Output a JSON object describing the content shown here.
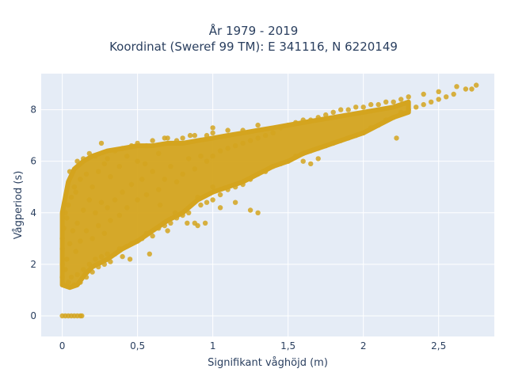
{
  "chart_data": {
    "type": "scatter",
    "title": "År 1979 - 2019",
    "subtitle": "Koordinat (Sweref 99 TM): E 341116, N 6220149",
    "xlabel": "Signifikant våghöjd (m)",
    "ylabel": "Vågperiod (s)",
    "xlim": [
      -0.14,
      2.87
    ],
    "ylim": [
      -0.8,
      9.4
    ],
    "xticks": [
      0,
      0.5,
      1,
      1.5,
      2,
      2.5
    ],
    "xtick_labels": [
      "0",
      "0,5",
      "1",
      "1,5",
      "2",
      "2,5"
    ],
    "yticks": [
      0,
      2,
      4,
      6,
      8
    ],
    "ytick_labels": [
      "0",
      "2",
      "4",
      "6",
      "8"
    ],
    "grid": true,
    "marker_color": "#D4A41E",
    "points": [
      [
        0.0,
        0
      ],
      [
        0.02,
        0
      ],
      [
        0.04,
        0
      ],
      [
        0.06,
        0
      ],
      [
        0.08,
        0
      ],
      [
        0.1,
        0
      ],
      [
        0.12,
        0
      ],
      [
        0.13,
        0
      ],
      [
        0.0,
        1.5
      ],
      [
        0.0,
        2.0
      ],
      [
        0.0,
        2.6
      ],
      [
        0.0,
        3.0
      ],
      [
        0.01,
        1.2
      ],
      [
        0.01,
        3.4
      ],
      [
        0.02,
        1.8
      ],
      [
        0.02,
        4.0
      ],
      [
        0.03,
        2.2
      ],
      [
        0.03,
        3.8
      ],
      [
        0.04,
        1.3
      ],
      [
        0.04,
        4.3
      ],
      [
        0.05,
        2.8
      ],
      [
        0.05,
        5.6
      ],
      [
        0.06,
        1.5
      ],
      [
        0.06,
        4.6
      ],
      [
        0.07,
        3.3
      ],
      [
        0.08,
        1.2
      ],
      [
        0.08,
        5.0
      ],
      [
        0.09,
        2.5
      ],
      [
        0.09,
        4.8
      ],
      [
        0.1,
        1.6
      ],
      [
        0.1,
        6.0
      ],
      [
        0.1,
        3.6
      ],
      [
        0.12,
        1.3
      ],
      [
        0.12,
        5.3
      ],
      [
        0.12,
        2.9
      ],
      [
        0.14,
        1.8
      ],
      [
        0.14,
        4.1
      ],
      [
        0.14,
        6.1
      ],
      [
        0.16,
        1.5
      ],
      [
        0.16,
        3.3
      ],
      [
        0.16,
        5.5
      ],
      [
        0.18,
        2.0
      ],
      [
        0.18,
        4.5
      ],
      [
        0.18,
        6.3
      ],
      [
        0.2,
        1.7
      ],
      [
        0.2,
        3.0
      ],
      [
        0.2,
        5.0
      ],
      [
        0.22,
        2.2
      ],
      [
        0.22,
        4.0
      ],
      [
        0.22,
        6.2
      ],
      [
        0.24,
        1.9
      ],
      [
        0.24,
        3.5
      ],
      [
        0.24,
        5.6
      ],
      [
        0.26,
        2.3
      ],
      [
        0.26,
        4.4
      ],
      [
        0.26,
        6.7
      ],
      [
        0.28,
        2.0
      ],
      [
        0.28,
        3.2
      ],
      [
        0.28,
        5.9
      ],
      [
        0.3,
        2.4
      ],
      [
        0.3,
        4.2
      ],
      [
        0.3,
        6.1
      ],
      [
        0.32,
        2.1
      ],
      [
        0.32,
        3.7
      ],
      [
        0.32,
        5.4
      ],
      [
        0.35,
        2.4
      ],
      [
        0.35,
        4.5
      ],
      [
        0.35,
        6.4
      ],
      [
        0.38,
        2.6
      ],
      [
        0.38,
        3.9
      ],
      [
        0.38,
        5.8
      ],
      [
        0.4,
        2.3
      ],
      [
        0.4,
        4.8
      ],
      [
        0.4,
        6.5
      ],
      [
        0.43,
        2.7
      ],
      [
        0.43,
        4.2
      ],
      [
        0.43,
        6.2
      ],
      [
        0.46,
        2.8
      ],
      [
        0.46,
        5.1
      ],
      [
        0.46,
        6.6
      ],
      [
        0.5,
        2.9
      ],
      [
        0.5,
        4.5
      ],
      [
        0.5,
        6.0
      ],
      [
        0.5,
        6.7
      ],
      [
        0.53,
        3.0
      ],
      [
        0.53,
        5.3
      ],
      [
        0.56,
        3.2
      ],
      [
        0.56,
        4.7
      ],
      [
        0.56,
        6.6
      ],
      [
        0.6,
        3.1
      ],
      [
        0.6,
        5.6
      ],
      [
        0.6,
        6.8
      ],
      [
        0.64,
        3.4
      ],
      [
        0.64,
        4.9
      ],
      [
        0.64,
        6.3
      ],
      [
        0.68,
        3.5
      ],
      [
        0.68,
        5.3
      ],
      [
        0.68,
        6.9
      ],
      [
        0.72,
        3.6
      ],
      [
        0.72,
        5.8
      ],
      [
        0.76,
        3.8
      ],
      [
        0.76,
        5.2
      ],
      [
        0.76,
        6.8
      ],
      [
        0.8,
        3.9
      ],
      [
        0.8,
        5.5
      ],
      [
        0.8,
        6.9
      ],
      [
        0.84,
        4.0
      ],
      [
        0.84,
        6.1
      ],
      [
        0.88,
        3.6
      ],
      [
        0.88,
        5.7
      ],
      [
        0.88,
        7.0
      ],
      [
        0.92,
        4.3
      ],
      [
        0.92,
        6.2
      ],
      [
        0.96,
        4.4
      ],
      [
        0.96,
        6.0
      ],
      [
        0.96,
        7.0
      ],
      [
        1.0,
        4.5
      ],
      [
        1.0,
        6.2
      ],
      [
        1.0,
        7.1
      ],
      [
        1.05,
        4.7
      ],
      [
        1.05,
        6.4
      ],
      [
        1.1,
        4.9
      ],
      [
        1.1,
        6.5
      ],
      [
        1.1,
        7.2
      ],
      [
        1.15,
        5.0
      ],
      [
        1.15,
        6.6
      ],
      [
        1.2,
        5.1
      ],
      [
        1.2,
        6.7
      ],
      [
        1.2,
        7.2
      ],
      [
        1.25,
        5.3
      ],
      [
        1.25,
        6.8
      ],
      [
        1.3,
        5.5
      ],
      [
        1.3,
        6.9
      ],
      [
        1.3,
        7.4
      ],
      [
        1.35,
        5.6
      ],
      [
        1.35,
        7.0
      ],
      [
        1.4,
        5.8
      ],
      [
        1.4,
        7.1
      ],
      [
        1.45,
        5.9
      ],
      [
        1.45,
        7.3
      ],
      [
        1.5,
        6.0
      ],
      [
        1.5,
        7.4
      ],
      [
        1.55,
        6.2
      ],
      [
        1.55,
        7.5
      ],
      [
        1.6,
        6.3
      ],
      [
        1.6,
        7.6
      ],
      [
        1.65,
        6.4
      ],
      [
        1.65,
        7.6
      ],
      [
        1.7,
        6.5
      ],
      [
        1.7,
        7.7
      ],
      [
        1.75,
        6.6
      ],
      [
        1.75,
        7.8
      ],
      [
        1.8,
        6.7
      ],
      [
        1.8,
        7.9
      ],
      [
        1.85,
        6.8
      ],
      [
        1.85,
        8.0
      ],
      [
        1.9,
        6.9
      ],
      [
        1.9,
        8.0
      ],
      [
        1.95,
        7.0
      ],
      [
        1.95,
        8.1
      ],
      [
        2.0,
        7.1
      ],
      [
        2.0,
        8.1
      ],
      [
        2.05,
        7.3
      ],
      [
        2.05,
        8.2
      ],
      [
        2.1,
        7.4
      ],
      [
        2.1,
        8.2
      ],
      [
        2.15,
        7.6
      ],
      [
        2.15,
        8.3
      ],
      [
        2.2,
        7.7
      ],
      [
        2.2,
        8.3
      ],
      [
        2.25,
        7.9
      ],
      [
        2.25,
        8.4
      ],
      [
        2.3,
        8.0
      ],
      [
        2.3,
        8.5
      ],
      [
        2.35,
        8.1
      ],
      [
        2.4,
        8.2
      ],
      [
        2.4,
        8.6
      ],
      [
        2.45,
        8.3
      ],
      [
        2.5,
        8.4
      ],
      [
        2.5,
        8.7
      ],
      [
        2.55,
        8.5
      ],
      [
        2.6,
        8.6
      ],
      [
        2.62,
        8.9
      ],
      [
        2.68,
        8.8
      ],
      [
        2.72,
        8.8
      ],
      [
        2.75,
        8.95
      ],
      [
        2.22,
        6.9
      ],
      [
        0.83,
        3.6
      ],
      [
        0.9,
        3.5
      ],
      [
        0.95,
        3.6
      ],
      [
        1.05,
        4.2
      ],
      [
        1.15,
        4.4
      ],
      [
        1.25,
        4.1
      ],
      [
        1.3,
        4.0
      ],
      [
        1.6,
        6.0
      ],
      [
        1.65,
        5.9
      ],
      [
        1.7,
        6.1
      ],
      [
        0.7,
        3.3
      ],
      [
        0.75,
        4.0
      ],
      [
        0.58,
        2.4
      ],
      [
        0.45,
        2.2
      ],
      [
        0.65,
        4.3
      ],
      [
        0.9,
        4.6
      ],
      [
        1.0,
        5.0
      ],
      [
        0.55,
        5.9
      ],
      [
        0.7,
        6.9
      ],
      [
        0.85,
        7.0
      ],
      [
        1.0,
        7.3
      ]
    ],
    "dense_band": {
      "upper": [
        [
          0.0,
          4.0
        ],
        [
          0.04,
          5.2
        ],
        [
          0.08,
          5.7
        ],
        [
          0.14,
          6.0
        ],
        [
          0.2,
          6.2
        ],
        [
          0.3,
          6.4
        ],
        [
          0.4,
          6.5
        ],
        [
          0.5,
          6.6
        ],
        [
          0.6,
          6.6
        ],
        [
          0.7,
          6.7
        ],
        [
          0.8,
          6.7
        ],
        [
          0.9,
          6.8
        ],
        [
          1.0,
          6.9
        ],
        [
          1.1,
          7.0
        ],
        [
          1.2,
          7.1
        ],
        [
          1.3,
          7.2
        ],
        [
          1.4,
          7.3
        ],
        [
          1.5,
          7.4
        ],
        [
          1.6,
          7.5
        ],
        [
          1.7,
          7.6
        ],
        [
          1.8,
          7.7
        ],
        [
          1.9,
          7.8
        ],
        [
          2.0,
          7.9
        ],
        [
          2.1,
          8.0
        ],
        [
          2.2,
          8.1
        ],
        [
          2.3,
          8.3
        ]
      ],
      "lower": [
        [
          2.3,
          7.9
        ],
        [
          2.2,
          7.7
        ],
        [
          2.1,
          7.4
        ],
        [
          2.0,
          7.1
        ],
        [
          1.9,
          6.9
        ],
        [
          1.8,
          6.7
        ],
        [
          1.7,
          6.5
        ],
        [
          1.6,
          6.3
        ],
        [
          1.5,
          6.0
        ],
        [
          1.4,
          5.8
        ],
        [
          1.3,
          5.5
        ],
        [
          1.2,
          5.2
        ],
        [
          1.1,
          5.0
        ],
        [
          1.0,
          4.8
        ],
        [
          0.9,
          4.5
        ],
        [
          0.8,
          4.0
        ],
        [
          0.7,
          3.7
        ],
        [
          0.6,
          3.3
        ],
        [
          0.5,
          2.9
        ],
        [
          0.4,
          2.6
        ],
        [
          0.3,
          2.2
        ],
        [
          0.2,
          1.9
        ],
        [
          0.15,
          1.6
        ],
        [
          0.1,
          1.2
        ],
        [
          0.05,
          1.1
        ],
        [
          0.0,
          1.2
        ]
      ]
    }
  }
}
